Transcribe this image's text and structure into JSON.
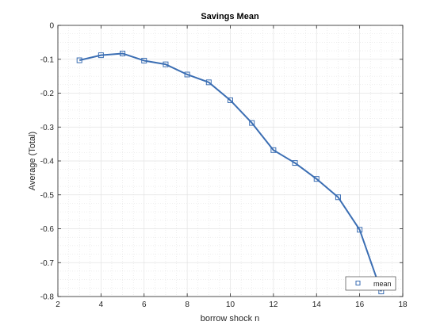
{
  "chart_data": {
    "type": "line",
    "title": "Savings Mean",
    "xlabel": "borrow shock n",
    "ylabel": "Average (Total)",
    "xlim": [
      2,
      18
    ],
    "ylim": [
      -0.8,
      0
    ],
    "xticks": [
      2,
      4,
      6,
      8,
      10,
      12,
      14,
      16,
      18
    ],
    "yticks": [
      0,
      -0.1,
      -0.2,
      -0.3,
      -0.4,
      -0.5,
      -0.6,
      -0.7,
      -0.8
    ],
    "xtick_labels": [
      "2",
      "4",
      "6",
      "8",
      "10",
      "12",
      "14",
      "16",
      "18"
    ],
    "ytick_labels": [
      "0",
      "-0.1",
      "-0.2",
      "-0.3",
      "-0.4",
      "-0.5",
      "-0.6",
      "-0.7",
      "-0.8"
    ],
    "grid": true,
    "minor_grid": true,
    "legend_position": "bottom-right",
    "series": [
      {
        "name": "mean",
        "color": "#3b6eb3",
        "marker": "square",
        "x": [
          3,
          4,
          5,
          6,
          7,
          8,
          9,
          10,
          11,
          12,
          13,
          14,
          15,
          16,
          17
        ],
        "y": [
          -0.103,
          -0.088,
          -0.083,
          -0.104,
          -0.115,
          -0.145,
          -0.168,
          -0.221,
          -0.288,
          -0.368,
          -0.406,
          -0.453,
          -0.507,
          -0.603,
          -0.785
        ]
      }
    ]
  }
}
